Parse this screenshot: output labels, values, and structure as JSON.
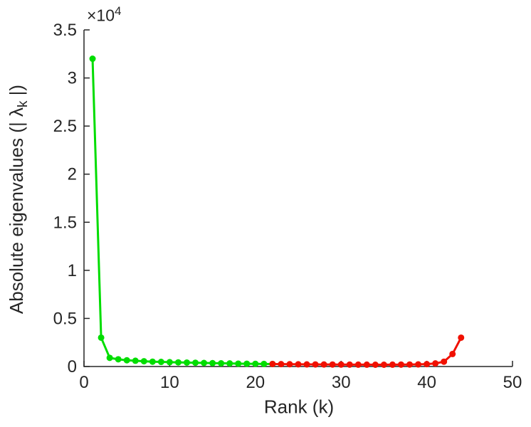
{
  "figure": {
    "background": "#ffffff",
    "text_color": "#262626"
  },
  "labels": {
    "xlabel": "Rank (k)",
    "ylabel_prefix": "Absolute eigenvalues (| ",
    "lambda": "λ",
    "lambda_sub": "k",
    "ylabel_suffix": " |)",
    "multiplier_base": "×10",
    "multiplier_exp": "4"
  },
  "chart_data": {
    "type": "line",
    "title": "",
    "xlabel": "Rank (k)",
    "ylabel": "Absolute eigenvalues (| λ_k |)",
    "y_axis_multiplier": "×10^4",
    "xlim": [
      0,
      50
    ],
    "ylim": [
      0,
      35000
    ],
    "grid": false,
    "box": false,
    "legend": "none",
    "marker": "circle",
    "marker_size": 4.5,
    "line_width": 3,
    "axis_color": "#262626",
    "xticks": [
      0,
      10,
      20,
      30,
      40,
      50
    ],
    "xtick_labels": [
      "0",
      "10",
      "20",
      "30",
      "40",
      "50"
    ],
    "yticks": [
      0,
      5000,
      10000,
      15000,
      20000,
      25000,
      30000,
      35000
    ],
    "ytick_labels": [
      "0",
      "0.5",
      "1",
      "1.5",
      "2",
      "2.5",
      "3",
      "3.5"
    ],
    "series": [
      {
        "name": "leading-eigenvalues-green",
        "color": "#00dd00",
        "x": [
          1,
          2,
          3,
          4,
          5,
          6,
          7,
          8,
          9,
          10,
          11,
          12,
          13,
          14,
          15,
          16,
          17,
          18,
          19,
          20,
          21,
          22
        ],
        "y": [
          32000,
          3000,
          900,
          750,
          650,
          600,
          550,
          500,
          480,
          450,
          430,
          410,
          390,
          370,
          350,
          330,
          320,
          300,
          290,
          280,
          270,
          260
        ]
      },
      {
        "name": "trailing-eigenvalues-red",
        "color": "#f01000",
        "x": [
          22,
          23,
          24,
          25,
          26,
          27,
          28,
          29,
          30,
          31,
          32,
          33,
          34,
          35,
          36,
          37,
          38,
          39,
          40,
          41,
          42,
          43,
          44
        ],
        "y": [
          260,
          250,
          240,
          230,
          220,
          215,
          210,
          205,
          200,
          195,
          190,
          190,
          185,
          185,
          190,
          195,
          205,
          220,
          250,
          320,
          500,
          1300,
          3000
        ]
      }
    ]
  }
}
